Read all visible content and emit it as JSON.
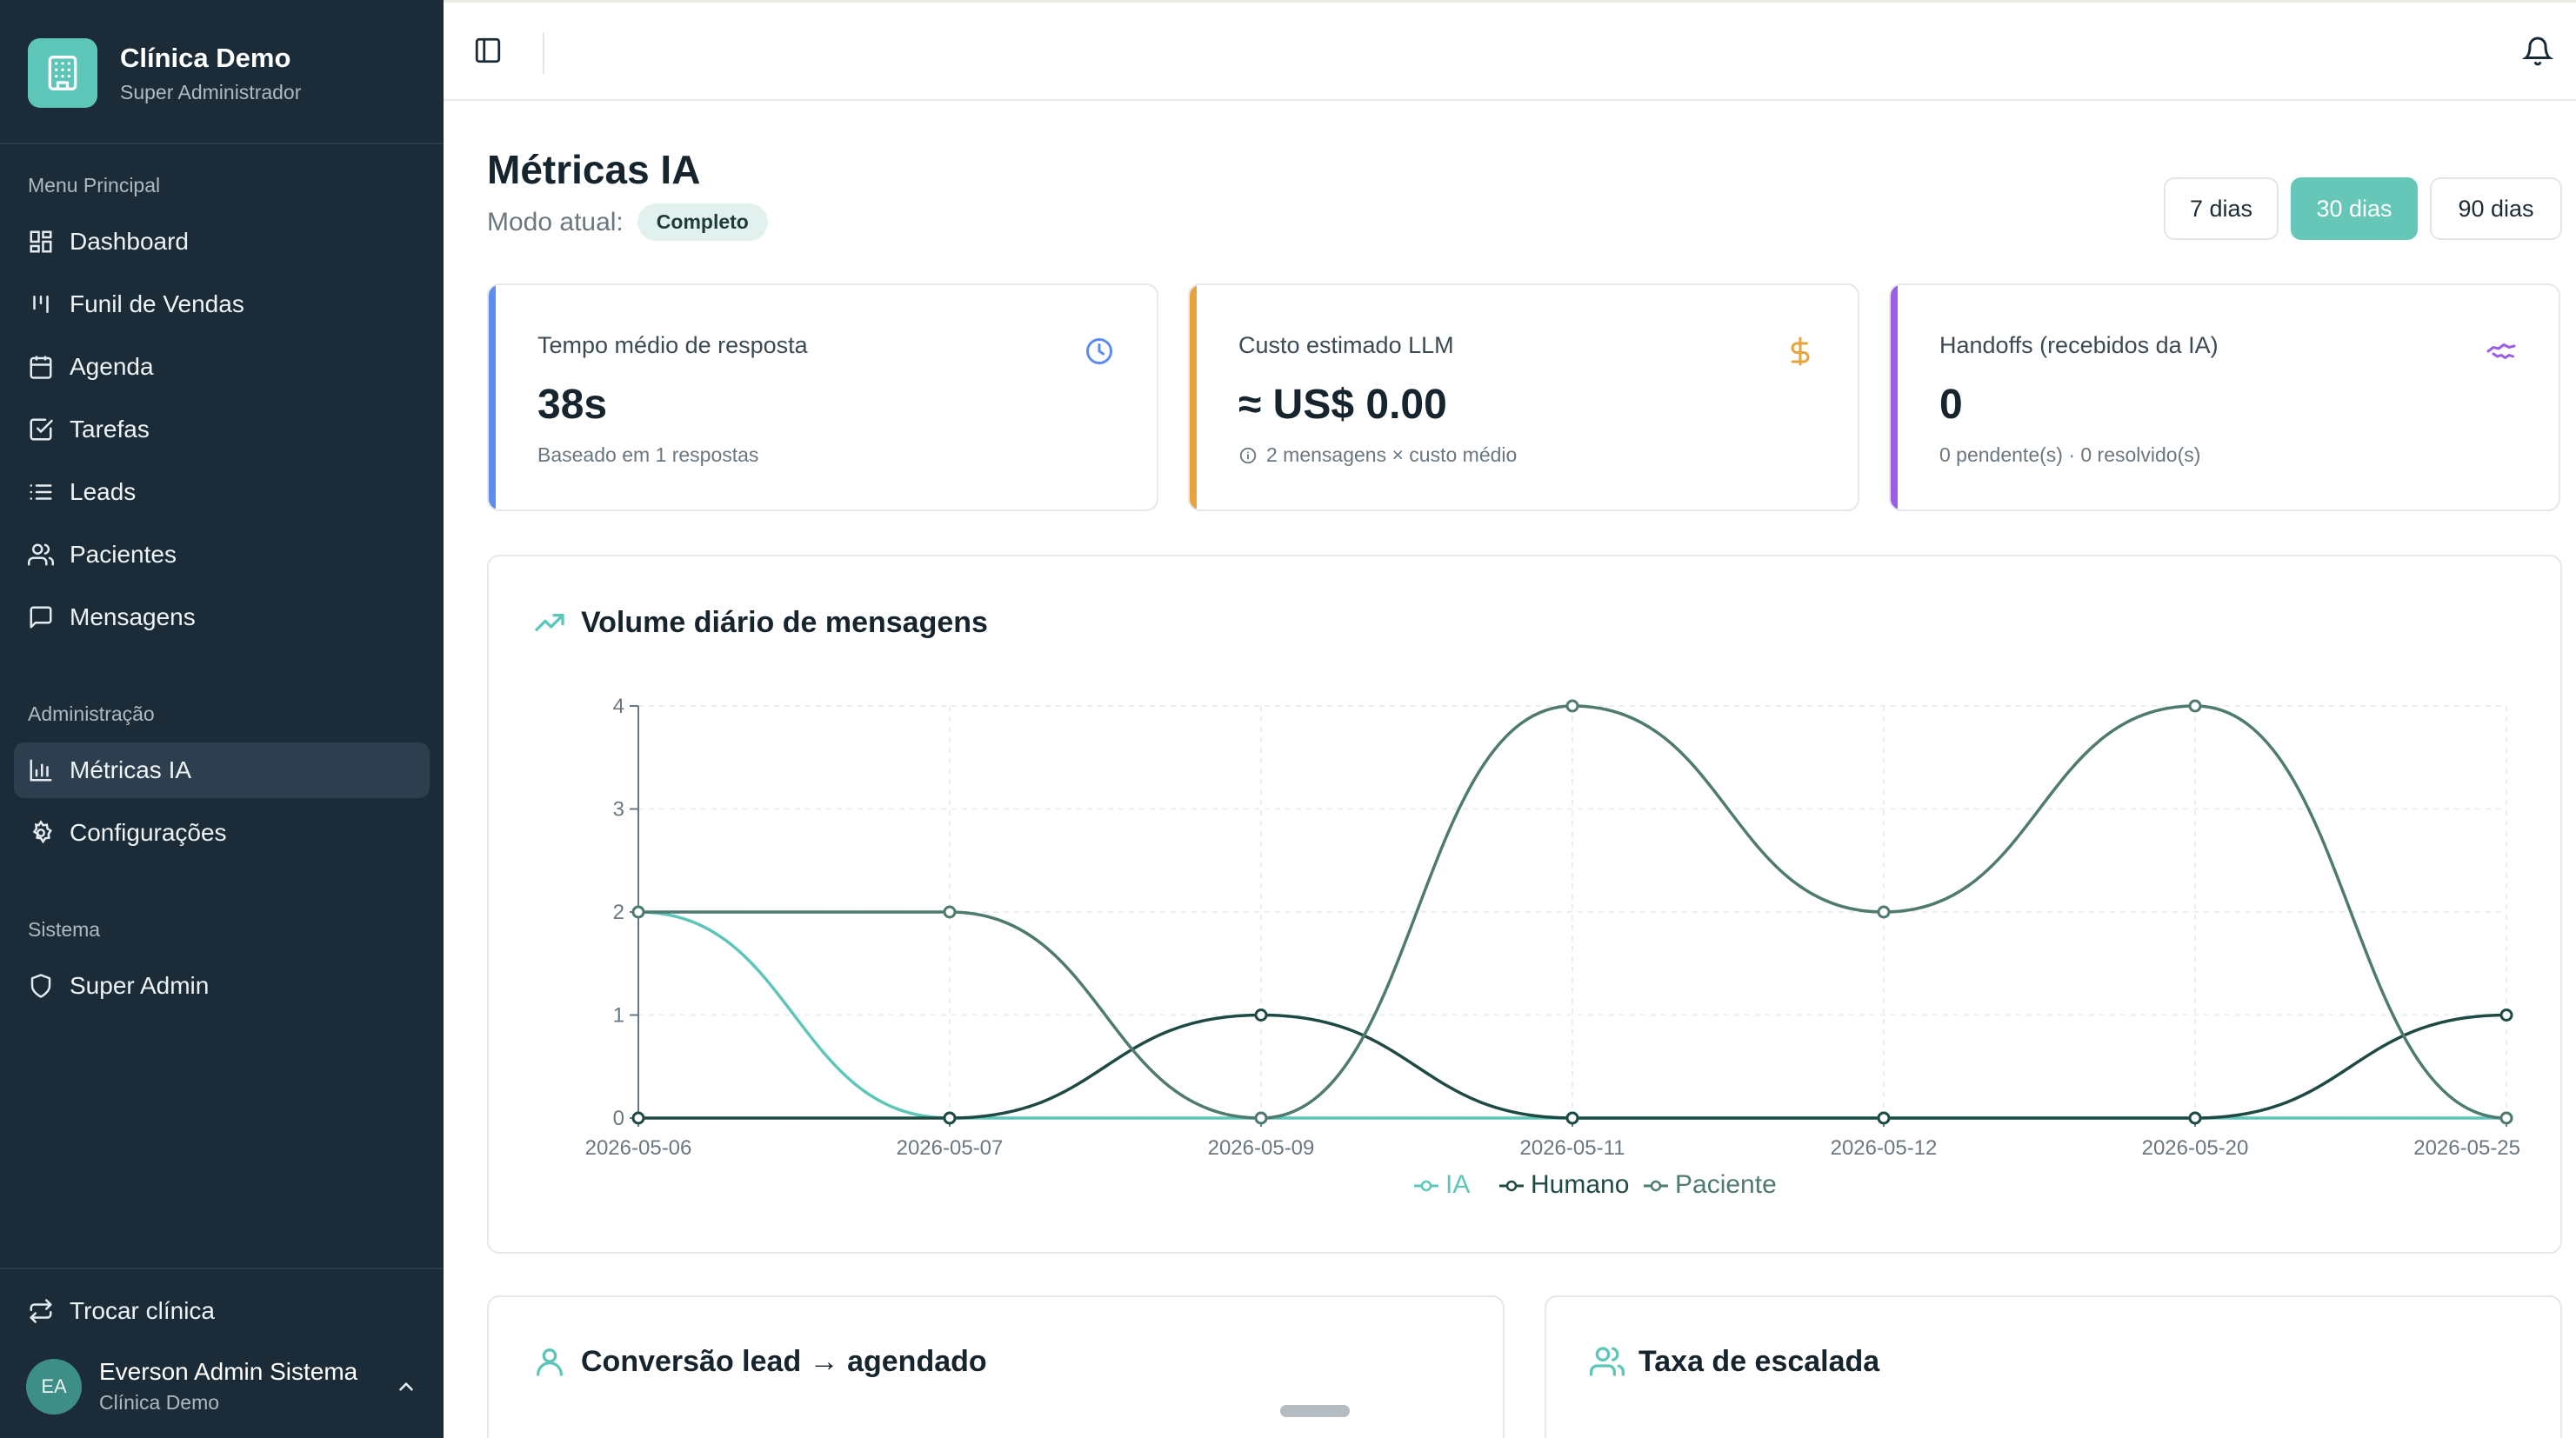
{
  "brand": {
    "name": "Clínica Demo",
    "role": "Super Administrador"
  },
  "sidebar": {
    "sections": [
      {
        "label": "Menu Principal"
      },
      {
        "label": "Administração"
      },
      {
        "label": "Sistema"
      }
    ],
    "items": [
      {
        "label": "Dashboard",
        "icon": "dashboard-icon"
      },
      {
        "label": "Funil de Vendas",
        "icon": "kanban-icon"
      },
      {
        "label": "Agenda",
        "icon": "calendar-icon"
      },
      {
        "label": "Tarefas",
        "icon": "checkbox-icon"
      },
      {
        "label": "Leads",
        "icon": "list-icon"
      },
      {
        "label": "Pacientes",
        "icon": "users-icon"
      },
      {
        "label": "Mensagens",
        "icon": "message-icon"
      },
      {
        "label": "Métricas IA",
        "icon": "bar-chart-icon",
        "active": true
      },
      {
        "label": "Configurações",
        "icon": "gear-icon"
      },
      {
        "label": "Super Admin",
        "icon": "shield-icon"
      }
    ],
    "switch_clinic": "Trocar clínica",
    "user": {
      "initials": "EA",
      "name": "Everson Admin Sistema",
      "clinic": "Clínica Demo"
    }
  },
  "header": {
    "title": "Métricas IA",
    "mode_label": "Modo atual:",
    "mode_value": "Completo"
  },
  "ranges": [
    {
      "label": "7 dias",
      "active": false
    },
    {
      "label": "30 dias",
      "active": true
    },
    {
      "label": "90 dias",
      "active": false
    }
  ],
  "stats": [
    {
      "label": "Tempo médio de resposta",
      "value": "38s",
      "sub": "Baseado em 1 respostas",
      "accent": "#5b8def",
      "icon": "clock-icon"
    },
    {
      "label": "Custo estimado LLM",
      "value": "≈ US$ 0.00",
      "sub": "2 mensagens × custo médio",
      "accent": "#e8a33d",
      "icon": "dollar-icon"
    },
    {
      "label": "Handoffs (recebidos da IA)",
      "value": "0",
      "sub": "0 pendente(s) · 0 resolvido(s)",
      "accent": "#9b5de5",
      "icon": "handshake-icon"
    }
  ],
  "chart_title": "Volume diário de mensagens",
  "chart_data": {
    "type": "line",
    "categories": [
      "2026-05-06",
      "2026-05-07",
      "2026-05-09",
      "2026-05-11",
      "2026-05-12",
      "2026-05-20",
      "2026-05-25"
    ],
    "series": [
      {
        "name": "IA",
        "values": [
          2,
          0,
          0,
          0,
          0,
          0,
          0
        ],
        "color": "#5ec6b8"
      },
      {
        "name": "Humano",
        "values": [
          0,
          0,
          1,
          0,
          0,
          0,
          1
        ],
        "color": "#1f4a44"
      },
      {
        "name": "Paciente",
        "values": [
          2,
          2,
          0,
          4,
          2,
          4,
          0
        ],
        "color": "#4f7a70"
      }
    ],
    "yticks": [
      0,
      1,
      2,
      3,
      4
    ],
    "ylim": [
      0,
      4
    ],
    "grid": true,
    "legend": "bottom-center"
  },
  "bottom_cards": [
    {
      "title": "Conversão lead → agendado",
      "icon": "user-icon"
    },
    {
      "title": "Taxa de escalada",
      "icon": "users-icon"
    }
  ]
}
